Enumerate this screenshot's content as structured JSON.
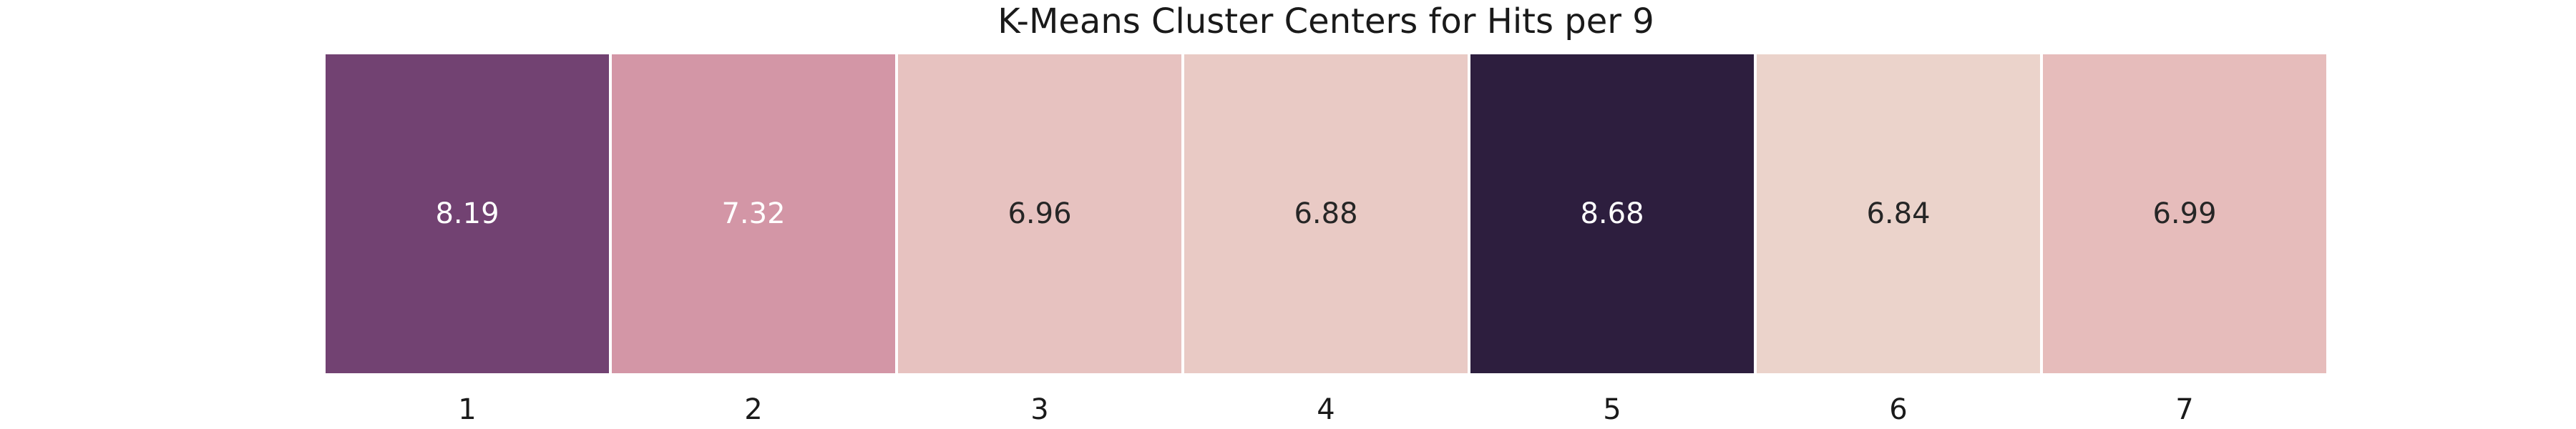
{
  "chart_data": {
    "type": "heatmap",
    "title": "K-Means Cluster Centers for Hits per 9",
    "xlabel": "",
    "ylabel": "",
    "categories": [
      "1",
      "2",
      "3",
      "4",
      "5",
      "6",
      "7"
    ],
    "values": [
      8.19,
      7.32,
      6.96,
      6.88,
      8.68,
      6.84,
      6.99
    ],
    "value_labels": [
      "8.19",
      "7.32",
      "6.96",
      "6.88",
      "8.68",
      "6.84",
      "6.99"
    ],
    "colormap": "cubehelix-pink-purple",
    "colorbar": false,
    "grid": false,
    "cell_colors": [
      "#724272",
      "#d396a6",
      "#e7c2c0",
      "#e9cac5",
      "#2d1e3e",
      "#ebd3cb",
      "#e6bcbb"
    ],
    "label_colors": [
      "#ffffff",
      "#ffffff",
      "#262626",
      "#262626",
      "#ffffff",
      "#262626",
      "#262626"
    ]
  }
}
